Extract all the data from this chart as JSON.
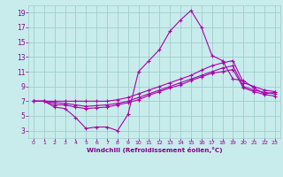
{
  "background_color": "#c8ecec",
  "grid_color": "#a0cccc",
  "line_color": "#aa00aa",
  "xlabel": "Windchill (Refroidissement éolien,°C)",
  "xlabel_color": "#880088",
  "tick_color": "#880088",
  "xlim": [
    -0.5,
    23.5
  ],
  "ylim": [
    2,
    20
  ],
  "yticks": [
    3,
    5,
    7,
    9,
    11,
    13,
    15,
    17,
    19
  ],
  "xticks": [
    0,
    1,
    2,
    3,
    4,
    5,
    6,
    7,
    8,
    9,
    10,
    11,
    12,
    13,
    14,
    15,
    16,
    17,
    18,
    19,
    20,
    21,
    22,
    23
  ],
  "series1": [
    7.0,
    7.0,
    6.2,
    6.0,
    4.8,
    3.3,
    3.5,
    3.5,
    3.0,
    5.2,
    11.0,
    12.5,
    14.0,
    16.5,
    18.0,
    19.3,
    17.0,
    13.2,
    12.5,
    10.0,
    9.8,
    8.8,
    8.0,
    8.2
  ],
  "series2": [
    7.0,
    7.0,
    7.0,
    7.0,
    7.0,
    7.0,
    7.0,
    7.0,
    7.2,
    7.5,
    8.0,
    8.5,
    9.0,
    9.5,
    10.0,
    10.5,
    11.2,
    11.8,
    12.2,
    12.5,
    9.5,
    9.0,
    8.5,
    8.3
  ],
  "series3": [
    7.0,
    7.0,
    6.8,
    6.7,
    6.5,
    6.3,
    6.4,
    6.5,
    6.7,
    7.0,
    7.5,
    8.0,
    8.5,
    9.0,
    9.5,
    10.0,
    10.5,
    11.0,
    11.5,
    11.8,
    9.0,
    8.5,
    8.2,
    8.0
  ],
  "series4": [
    7.0,
    7.0,
    6.5,
    6.5,
    6.2,
    6.0,
    6.1,
    6.2,
    6.5,
    6.8,
    7.2,
    7.8,
    8.3,
    8.8,
    9.2,
    9.8,
    10.3,
    10.8,
    11.0,
    11.3,
    8.8,
    8.3,
    7.9,
    7.7
  ]
}
